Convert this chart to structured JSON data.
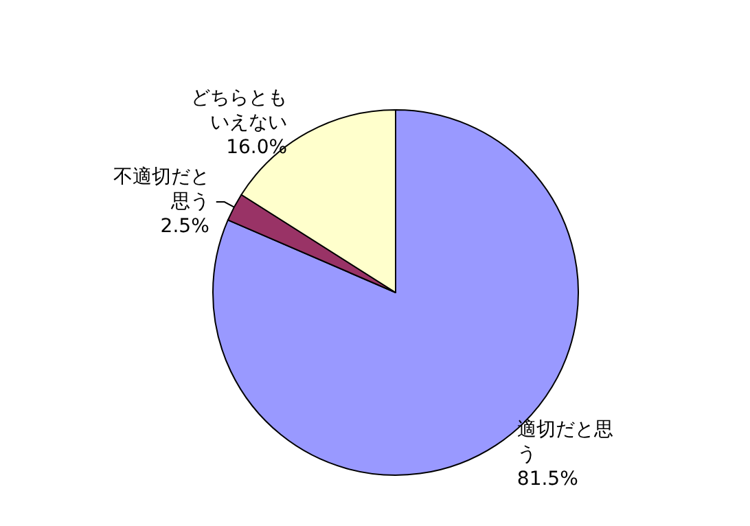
{
  "chart_data": {
    "type": "pie",
    "categories": [
      "適切だと思う",
      "不適切だと思う",
      "どちらともいえない"
    ],
    "values": [
      81.5,
      2.5,
      16.0
    ],
    "colors": [
      "#9999ff",
      "#993366",
      "#ffffcc"
    ],
    "value_labels": [
      "81.5%",
      "2.5%",
      "16.0%"
    ]
  }
}
